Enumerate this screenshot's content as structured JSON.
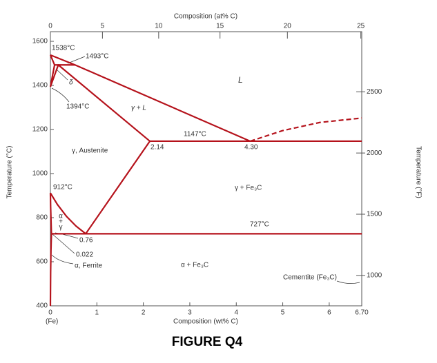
{
  "chart_data": {
    "type": "phase",
    "color": "#b5121b",
    "xlabel": "Composition (wt% C)",
    "x2label": "Composition (at% C)",
    "ylabel": "Temperature (°C)",
    "y2label": "Temperature (°F)",
    "x_origin_note": "(Fe)",
    "xlim": [
      0,
      6.7
    ],
    "xticks": [
      0,
      1,
      2,
      3,
      4,
      5,
      6,
      {
        "value": 6.7,
        "label": "6.70"
      }
    ],
    "x2ticks": [
      {
        "value": 0,
        "label": "0"
      },
      {
        "value": 1.12,
        "label": "5"
      },
      {
        "value": 2.33,
        "label": "10"
      },
      {
        "value": 3.65,
        "label": "15"
      },
      {
        "value": 5.1,
        "label": "20"
      },
      {
        "value": 6.68,
        "label": "25"
      }
    ],
    "ylim": [
      400,
      1600
    ],
    "yticks": [
      400,
      600,
      800,
      1000,
      1200,
      1400,
      1600
    ],
    "y2ticks": [
      {
        "value": 537.8,
        "label": "1000"
      },
      {
        "value": 815.6,
        "label": "1500"
      },
      {
        "value": 1093.3,
        "label": "2000"
      },
      {
        "value": 1371.1,
        "label": "2500"
      }
    ],
    "series": [
      {
        "x": [
          0,
          0.53,
          4.3
        ],
        "values": [
          1538,
          1493,
          1147
        ]
      },
      {
        "x": [
          4.3,
          5,
          5.8,
          6.7
        ],
        "values": [
          1147,
          1195,
          1232,
          1252
        ],
        "dashed": true
      },
      {
        "x": [
          0,
          0.09,
          0.53
        ],
        "values": [
          1538,
          1493,
          1493
        ]
      },
      {
        "x": [
          0,
          0.09
        ],
        "values": [
          1394,
          1493
        ]
      },
      {
        "x": [
          0,
          0.17,
          2.14
        ],
        "values": [
          1394,
          1493,
          1147
        ]
      },
      {
        "x": [
          2.14,
          6.7
        ],
        "values": [
          1147,
          1147
        ]
      },
      {
        "x": [
          2.14,
          0.76
        ],
        "values": [
          1147,
          727
        ]
      },
      {
        "x": [
          0,
          0.15,
          0.35,
          0.55,
          0.76
        ],
        "values": [
          912,
          860,
          805,
          762,
          727
        ]
      },
      {
        "x": [
          0,
          0.005,
          0.013,
          0.022
        ],
        "values": [
          912,
          850,
          790,
          727
        ]
      },
      {
        "x": [
          0.022,
          0.012,
          0.005,
          0
        ],
        "values": [
          727,
          650,
          550,
          400
        ]
      },
      {
        "x": [
          0.022,
          6.7
        ],
        "values": [
          727,
          727
        ]
      }
    ],
    "annotations": {
      "t1538": "1538°C",
      "t1493": "1493°C",
      "delta": "δ",
      "t1394": "1394°C",
      "gamma_l": "γ + L",
      "liquid": "L",
      "t1147": "1147°C",
      "c214": "2.14",
      "c430": "4.30",
      "austenite": "γ, Austenite",
      "t912": "912°C",
      "gamma_fe3c": "γ + Fe₃C",
      "t727": "727°C",
      "alpha_gamma": [
        "α",
        "+",
        "γ"
      ],
      "c076": "0.76",
      "c0022": "0.022",
      "ferrite": "α, Ferrite",
      "alpha_fe3c": "α + Fe₃C",
      "cementite": "Cementite (Fe₃C)"
    }
  },
  "figure": {
    "caption": "FIGURE Q4"
  }
}
